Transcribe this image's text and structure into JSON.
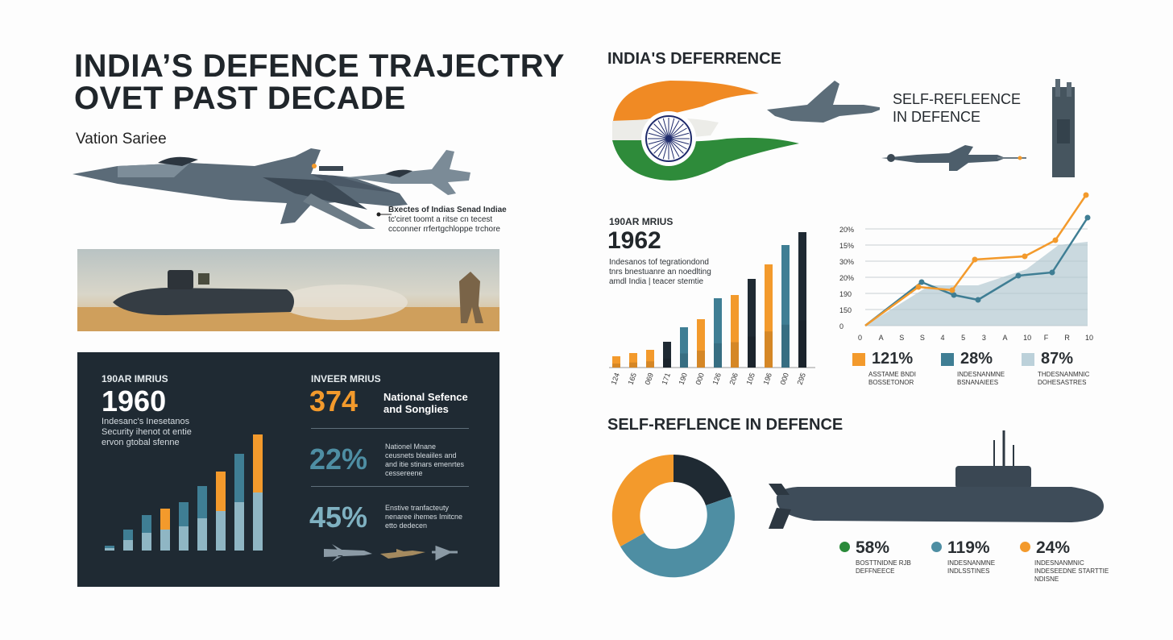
{
  "left": {
    "title_line1": "INDIA’S DEFENCE TRAJECTRY",
    "title_line2": "OVET PAST DECADE",
    "subtitle": "Vation Sariee",
    "jet_caption_bold": "Bxectes of Indias Senad Indiae",
    "jet_caption_line2": "tc'ciret toomt a ritse cn tecest",
    "jet_caption_line3": "ccconner rrfertgchloppe trchore"
  },
  "dark_panel": {
    "label": "190AR IMRIUS",
    "year": "1960",
    "desc1": "Indesanc's Inesetanos",
    "desc2": "Security ihenot ot entie",
    "desc3": "ervon gtobal sfenne",
    "stat_label": "INVEER MRIUS",
    "stat_value": "374",
    "stat_title1": "National Sefence",
    "stat_title2": "and Songlies",
    "p2_value": "22%",
    "p2_desc1": "Nationel Mnane",
    "p2_desc2": "ceusnets bleaiiles and",
    "p2_desc3": "and itie stinars emenrtes",
    "p2_desc4": "cessereene",
    "p3_value": "45%",
    "p3_desc1": "Enstive tranfacteuty",
    "p3_desc2": "nenaree ihemes Imitcne",
    "p3_desc3": "etto dedecen"
  },
  "right_top": {
    "header": "INDIA'S DEFERRENCE",
    "self_line1": "SELF-REFLEENCE",
    "self_line2": "IN DEFENCE"
  },
  "right_mid": {
    "label": "190AR MRIUS",
    "year": "1962",
    "desc1": "Indesanos tof tegrationdond",
    "desc2": "tnrs bnestuanre an noedlting",
    "desc3": "amdl India | teacer stemtie"
  },
  "bar_chart": {
    "x_labels": [
      "124",
      "165",
      "069",
      "171",
      "190",
      "000",
      "126",
      "206",
      "105",
      "196",
      "000",
      "295"
    ]
  },
  "line_chart": {
    "y_labels": [
      "20%",
      "15%",
      "30%",
      "20%",
      "190",
      "150",
      "0"
    ],
    "x_labels": [
      "0",
      "A",
      "S",
      "S",
      "4",
      "5",
      "3",
      "A",
      "10",
      "F",
      "R",
      "10"
    ],
    "legend": [
      {
        "value": "121%",
        "desc1": "ASSTAME BNDI",
        "desc2": "BOSSETONOR",
        "color": "#f39a2c"
      },
      {
        "value": "28%",
        "desc1": "INDESNANMNE",
        "desc2": "BSNANAIEES",
        "color": "#3f7e94"
      },
      {
        "value": "87%",
        "desc1": "THDESNANMNIC",
        "desc2": "DOHESASTRES",
        "color": "#bcd1da"
      }
    ]
  },
  "bottom": {
    "header": "SELF-REFLENCE IN DEFENCE",
    "stats": [
      {
        "value": "58%",
        "desc1": "BOSTTNIDNE RJB",
        "desc2": "DEFFNEECE",
        "color": "#2a8a3a"
      },
      {
        "value": "119%",
        "desc1": "INDESNANMNE",
        "desc2": "INDLSSTINES",
        "color": "#4e8ea3"
      },
      {
        "value": "24%",
        "desc1": "INDESNANMNIC",
        "desc2": "INDESEEDNE STARTTIE",
        "desc3": "NDISNE",
        "color": "#f39a2c"
      }
    ]
  },
  "colors": {
    "orange": "#f39a2c",
    "teal": "#3f7e94",
    "teal_light": "#8fb6c4",
    "navy": "#1f2a33",
    "green": "#2a8a3a",
    "saffron": "#f08a24"
  }
}
